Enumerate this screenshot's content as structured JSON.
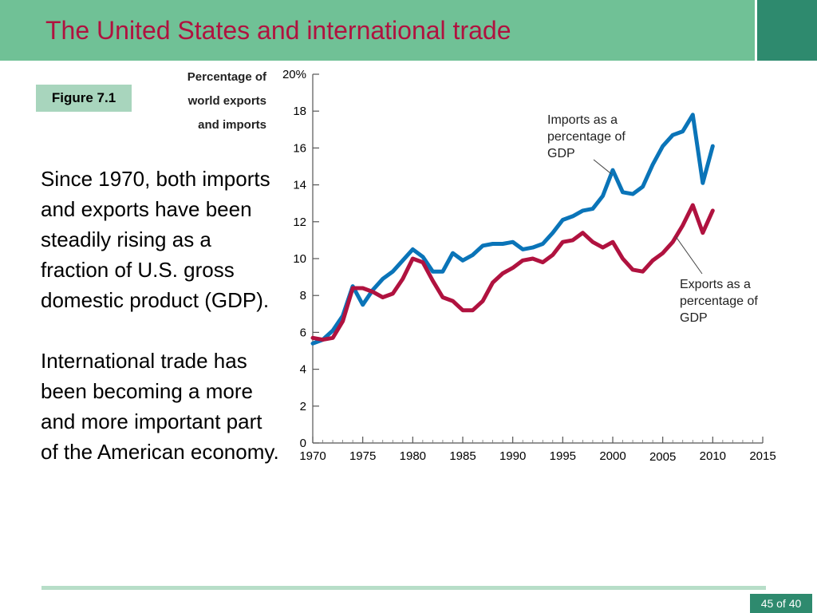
{
  "slide": {
    "title": "The United States and international trade",
    "figure_label": "Figure 7.1",
    "paragraphs": [
      "Since 1970, both imports and exports have been steadily rising as a fraction of U.S. gross domestic product (GDP).",
      "International trade has been becoming a more and more important part of the American economy."
    ],
    "page_number": "45 of 40"
  },
  "colors": {
    "header": "#70c196",
    "header_corner": "#2e8a6e",
    "title": "#b0123f",
    "figure_label_bg": "#a8d5bd",
    "imports_line": "#0a74b8",
    "exports_line": "#b0123f"
  },
  "chart_data": {
    "type": "line",
    "ylabel_lines": [
      "Percentage of",
      "world exports",
      "and imports"
    ],
    "x_ticks": [
      1970,
      1975,
      1980,
      1985,
      1990,
      1995,
      2000,
      2005,
      2010,
      2015
    ],
    "x_tick_labels": [
      "1970",
      "1975",
      "1980",
      "1985",
      "1990",
      "1995",
      "2000",
      "2005",
      "2010",
      "2015"
    ],
    "y_ticks": [
      0,
      2,
      4,
      6,
      8,
      10,
      12,
      14,
      16,
      18,
      20
    ],
    "y_tick_labels": [
      "0",
      "2",
      "4",
      "6",
      "8",
      "10",
      "12",
      "14",
      "16",
      "18",
      "20%"
    ],
    "xlim": [
      1970,
      2015
    ],
    "ylim": [
      0,
      20
    ],
    "grid": false,
    "x": [
      1970,
      1971,
      1972,
      1973,
      1974,
      1975,
      1976,
      1977,
      1978,
      1979,
      1980,
      1981,
      1982,
      1983,
      1984,
      1985,
      1986,
      1987,
      1988,
      1989,
      1990,
      1991,
      1992,
      1993,
      1994,
      1995,
      1996,
      1997,
      1998,
      1999,
      2000,
      2001,
      2002,
      2003,
      2004,
      2005,
      2006,
      2007,
      2008,
      2009,
      2010
    ],
    "series": [
      {
        "name": "Imports as a percentage of GDP",
        "label_lines": [
          "Imports as a",
          "percentage of",
          "GDP"
        ],
        "color": "#0a74b8",
        "values": [
          5.4,
          5.6,
          6.1,
          6.9,
          8.5,
          7.5,
          8.3,
          8.9,
          9.3,
          9.9,
          10.5,
          10.1,
          9.3,
          9.3,
          10.3,
          9.9,
          10.2,
          10.7,
          10.8,
          10.8,
          10.9,
          10.5,
          10.6,
          10.8,
          11.4,
          12.1,
          12.3,
          12.6,
          12.7,
          13.4,
          14.8,
          13.6,
          13.5,
          13.9,
          15.1,
          16.1,
          16.7,
          16.9,
          17.8,
          14.1,
          16.1
        ]
      },
      {
        "name": "Exports as a percentage of GDP",
        "label_lines": [
          "Exports as a",
          "percentage of",
          "GDP"
        ],
        "color": "#b0123f",
        "values": [
          5.7,
          5.6,
          5.7,
          6.6,
          8.4,
          8.4,
          8.2,
          7.9,
          8.1,
          8.9,
          10.0,
          9.8,
          8.8,
          7.9,
          7.7,
          7.2,
          7.2,
          7.7,
          8.7,
          9.2,
          9.5,
          9.9,
          10.0,
          9.8,
          10.2,
          10.9,
          11.0,
          11.4,
          10.9,
          10.6,
          10.9,
          10.0,
          9.4,
          9.3,
          9.9,
          10.3,
          10.9,
          11.8,
          12.9,
          11.4,
          12.6
        ]
      }
    ]
  }
}
